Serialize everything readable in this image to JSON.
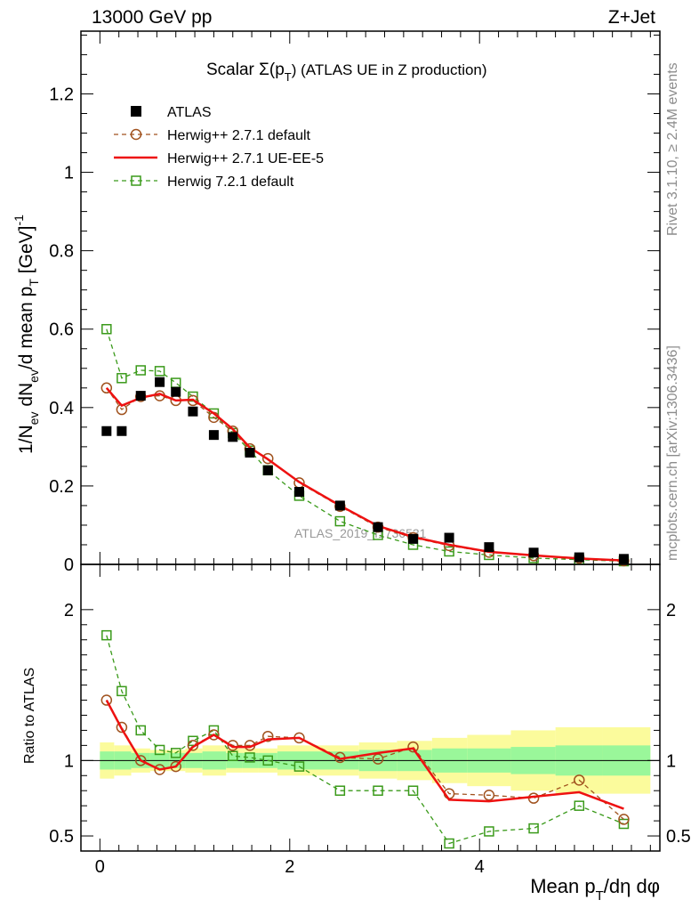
{
  "header": {
    "left": "13000 GeV pp",
    "right": "Z+Jet"
  },
  "side_labels": {
    "rivet": "Rivet 3.1.10, ≥ 2.4M events",
    "mcplots": "mcplots.cern.ch [arXiv:1306.3436]"
  },
  "watermark": "ATLAS_2019_I1736531",
  "colors": {
    "atlas": "#000000",
    "herwigpp_default": "#a0521e",
    "herwigpp_ueee5": "#ee1111",
    "herwig7": "#3a9a1a",
    "band_inner": "#9af79a",
    "band_outer": "#fbfb9c"
  },
  "chart_data": [
    {
      "type": "scatter",
      "title": "Scalar Σ(p_T) (ATLAS UE in Z production)",
      "title_main": "Scalar Σ(p",
      "title_sub": "T",
      "title_tail": ") (ATLAS UE in Z production)",
      "ylabel": "1/N_ev dN_ev/d mean p_T [GeV]^-1",
      "xlim": [
        -0.2,
        5.9
      ],
      "ylim": [
        0,
        1.36
      ],
      "yticks": [
        0,
        0.2,
        0.4,
        0.6,
        0.8,
        1,
        1.2
      ],
      "ytick_labels": [
        "0",
        "0.2",
        "0.4",
        "0.6",
        "0.8",
        "1",
        "1.2"
      ],
      "legend_position": "top-left",
      "x": [
        0.07,
        0.23,
        0.43,
        0.63,
        0.8,
        0.98,
        1.2,
        1.4,
        1.58,
        1.77,
        2.1,
        2.53,
        2.93,
        3.3,
        3.68,
        4.1,
        4.57,
        5.05,
        5.52
      ],
      "series": [
        {
          "name": "ATLAS",
          "style": "data",
          "values": [
            0.34,
            0.34,
            0.43,
            0.465,
            0.44,
            0.39,
            0.33,
            0.325,
            0.285,
            0.24,
            0.185,
            0.15,
            0.095,
            0.065,
            0.068,
            0.044,
            0.03,
            0.018,
            0.014
          ]
        },
        {
          "name": "Herwig++ 2.7.1 default",
          "style": "circle",
          "values": [
            0.45,
            0.395,
            0.428,
            0.43,
            0.418,
            0.418,
            0.375,
            0.34,
            0.295,
            0.27,
            0.208,
            0.148,
            0.095,
            0.068,
            0.048,
            0.031,
            0.022,
            0.016,
            0.009
          ]
        },
        {
          "name": "Herwig++ 2.7.1 UE-EE-5",
          "style": "line",
          "values": [
            0.45,
            0.405,
            0.425,
            0.435,
            0.418,
            0.42,
            0.385,
            0.345,
            0.298,
            0.268,
            0.21,
            0.15,
            0.098,
            0.07,
            0.05,
            0.032,
            0.023,
            0.015,
            0.01
          ]
        },
        {
          "name": "Herwig 7.2.1 default",
          "style": "square",
          "values": [
            0.6,
            0.475,
            0.495,
            0.493,
            0.463,
            0.428,
            0.385,
            0.335,
            0.29,
            0.24,
            0.175,
            0.11,
            0.075,
            0.05,
            0.033,
            0.024,
            0.016,
            0.012,
            0.008
          ]
        }
      ]
    },
    {
      "type": "line",
      "ylabel": "Ratio to ATLAS",
      "xlabel": "Mean p_T/dη dφ",
      "xlim": [
        -0.2,
        5.9
      ],
      "ylim": [
        0.4,
        2.3
      ],
      "yticks": [
        0.5,
        1,
        2
      ],
      "ytick_labels": [
        "0.5",
        "1",
        "2"
      ],
      "xticks": [
        0,
        2,
        4
      ],
      "xtick_labels": [
        "0",
        "2",
        "4"
      ],
      "bands": {
        "edges": [
          0.0,
          0.15,
          0.33,
          0.53,
          0.73,
          0.9,
          1.08,
          1.33,
          1.5,
          1.67,
          1.87,
          2.33,
          2.73,
          3.13,
          3.5,
          3.87,
          4.33,
          4.8,
          5.3,
          5.8
        ],
        "inner_half": [
          0.06,
          0.06,
          0.05,
          0.05,
          0.05,
          0.05,
          0.06,
          0.05,
          0.05,
          0.05,
          0.06,
          0.06,
          0.07,
          0.07,
          0.08,
          0.08,
          0.09,
          0.1,
          0.1
        ],
        "outer_half": [
          0.12,
          0.1,
          0.08,
          0.07,
          0.07,
          0.08,
          0.1,
          0.08,
          0.08,
          0.08,
          0.1,
          0.1,
          0.12,
          0.13,
          0.15,
          0.17,
          0.2,
          0.22,
          0.22
        ]
      },
      "series": [
        {
          "name": "Herwig++ 2.7.1 default",
          "style": "circle",
          "values": [
            1.4,
            1.22,
            1.0,
            0.94,
            0.96,
            1.1,
            1.17,
            1.1,
            1.1,
            1.16,
            1.15,
            1.02,
            1.01,
            1.09,
            0.78,
            0.77,
            0.75,
            0.87,
            0.61
          ]
        },
        {
          "name": "Herwig++ 2.7.1 UE-EE-5",
          "style": "line",
          "values": [
            1.4,
            1.21,
            1.0,
            0.94,
            0.96,
            1.09,
            1.17,
            1.09,
            1.09,
            1.14,
            1.15,
            1.01,
            1.05,
            1.08,
            0.74,
            0.73,
            0.76,
            0.79,
            0.68
          ]
        },
        {
          "name": "Herwig 7.2.1 default",
          "style": "square",
          "values": [
            1.83,
            1.46,
            1.2,
            1.07,
            1.05,
            1.13,
            1.2,
            1.03,
            1.02,
            1.0,
            0.96,
            0.8,
            0.8,
            0.8,
            0.45,
            0.53,
            0.55,
            0.7,
            0.58
          ]
        }
      ]
    }
  ]
}
